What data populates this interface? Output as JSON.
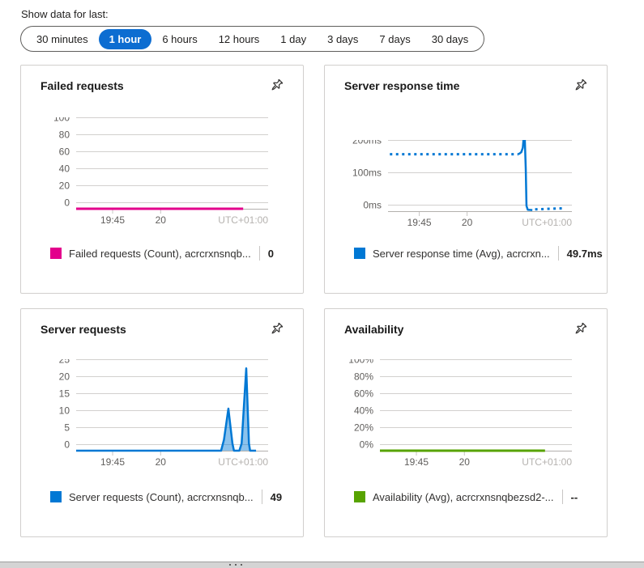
{
  "time_range_selector": {
    "label": "Show data for last:",
    "selected_color": "#0d6dd1",
    "options": [
      {
        "label": "30 minutes",
        "selected": false
      },
      {
        "label": "1 hour",
        "selected": true
      },
      {
        "label": "6 hours",
        "selected": false
      },
      {
        "label": "12 hours",
        "selected": false
      },
      {
        "label": "1 day",
        "selected": false
      },
      {
        "label": "3 days",
        "selected": false
      },
      {
        "label": "7 days",
        "selected": false
      },
      {
        "label": "30 days",
        "selected": false
      }
    ]
  },
  "icons": {
    "pin": "pushpin-icon",
    "bottom_handle": "drag-handle-dots"
  },
  "chart_data": [
    {
      "id": "failed-requests",
      "type": "line",
      "title": "Failed requests",
      "color": "#e3008c",
      "fill": false,
      "ylim": [
        0,
        100
      ],
      "y_ticks": [
        "100",
        "80",
        "60",
        "40",
        "20",
        "0"
      ],
      "x_ticks": [
        {
          "label": "19:45",
          "pos": 0.19
        },
        {
          "label": "20",
          "pos": 0.44
        }
      ],
      "timezone_label": "UTC+01:00",
      "grid": true,
      "legend": {
        "label": "Failed requests (Count), acrcrxnsnqb...",
        "value": "0"
      },
      "series": [
        {
          "name": "Failed requests",
          "style": "solid",
          "width": 3,
          "points": [
            [
              0.0,
              0
            ],
            [
              0.87,
              0
            ]
          ]
        }
      ],
      "layout": {
        "grid_spacing": 21,
        "chart_top": 64,
        "label_col": 44,
        "axis_offset": 8
      }
    },
    {
      "id": "server-response-time",
      "type": "line",
      "title": "Server response time",
      "color": "#0078d4",
      "fill": false,
      "ylim": [
        0,
        200
      ],
      "y_ticks": [
        "200ms",
        "100ms",
        "0ms"
      ],
      "x_ticks": [
        {
          "label": "19:45",
          "pos": 0.17
        },
        {
          "label": "20",
          "pos": 0.43
        }
      ],
      "timezone_label": "UTC+01:00",
      "grid": true,
      "legend": {
        "label": "Server response time (Avg), acrcrxn...",
        "value": "49.7ms"
      },
      "series": [
        {
          "name": "Server response time (sparse)",
          "style": "dotted",
          "width": 3,
          "points": [
            [
              0.01,
              160
            ],
            [
              0.71,
              160
            ]
          ]
        },
        {
          "name": "Server response time",
          "style": "solid",
          "width": 2.5,
          "points": [
            [
              0.71,
              160
            ],
            [
              0.725,
              166
            ],
            [
              0.733,
              178
            ],
            [
              0.742,
              232
            ],
            [
              0.749,
              120
            ],
            [
              0.753,
              15
            ],
            [
              0.76,
              4
            ],
            [
              0.785,
              3
            ]
          ]
        },
        {
          "name": "Server response time (sparse tail)",
          "style": "dotted",
          "width": 3,
          "points": [
            [
              0.8,
              5
            ],
            [
              0.89,
              7
            ],
            [
              0.95,
              8
            ]
          ]
        }
      ],
      "layout": {
        "grid_spacing": 40,
        "chart_top": 92,
        "label_col": 54,
        "axis_offset": 8
      }
    },
    {
      "id": "server-requests",
      "type": "area",
      "title": "Server requests",
      "color": "#0078d4",
      "fill": true,
      "fill_color": "rgba(0,120,212,0.45)",
      "ylim": [
        0,
        25
      ],
      "y_ticks": [
        "25",
        "20",
        "15",
        "10",
        "5",
        "0"
      ],
      "x_ticks": [
        {
          "label": "19:45",
          "pos": 0.19
        },
        {
          "label": "20",
          "pos": 0.44
        }
      ],
      "timezone_label": "UTC+01:00",
      "grid": true,
      "legend": {
        "label": "Server requests (Count), acrcrxnsnqb...",
        "value": "49"
      },
      "series": [
        {
          "name": "Server requests",
          "style": "solid",
          "width": 2.5,
          "points": [
            [
              0.0,
              0
            ],
            [
              0.73,
              0
            ],
            [
              0.755,
              0
            ],
            [
              0.77,
              3
            ],
            [
              0.793,
              11.5
            ],
            [
              0.814,
              2
            ],
            [
              0.822,
              0
            ],
            [
              0.85,
              0
            ],
            [
              0.862,
              2
            ],
            [
              0.886,
              22.5
            ],
            [
              0.9,
              2
            ],
            [
              0.906,
              0
            ],
            [
              0.937,
              0
            ]
          ]
        }
      ],
      "layout": {
        "grid_spacing": 21,
        "chart_top": 62,
        "label_col": 44,
        "axis_offset": 8
      }
    },
    {
      "id": "availability",
      "type": "line",
      "title": "Availability",
      "color": "#57a300",
      "fill": false,
      "ylim": [
        0,
        100
      ],
      "y_ticks": [
        "100%",
        "80%",
        "60%",
        "40%",
        "20%",
        "0%"
      ],
      "x_ticks": [
        {
          "label": "19:45",
          "pos": 0.19
        },
        {
          "label": "20",
          "pos": 0.44
        }
      ],
      "timezone_label": "UTC+01:00",
      "grid": true,
      "legend": {
        "label": "Availability (Avg), acrcrxnsnqbezsd2-...",
        "value": "--"
      },
      "series": [
        {
          "name": "Availability",
          "style": "solid",
          "width": 3,
          "points": [
            [
              0.0,
              0
            ],
            [
              0.86,
              0
            ]
          ]
        }
      ],
      "layout": {
        "grid_spacing": 21,
        "chart_top": 62,
        "label_col": 44,
        "axis_offset": 8
      }
    }
  ]
}
